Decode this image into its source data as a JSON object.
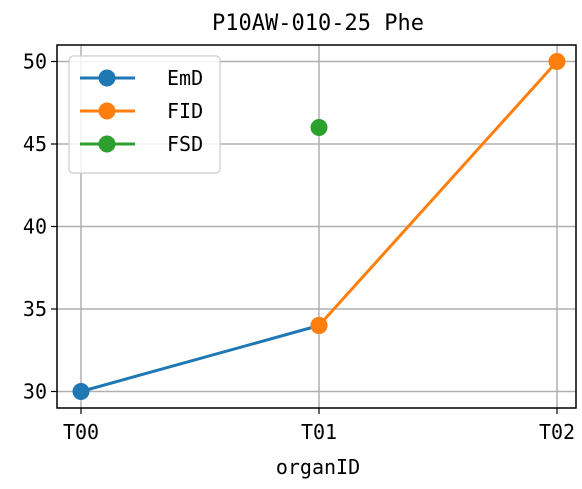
{
  "chart_data": {
    "type": "line",
    "title": "P10AW-010-25 Phe",
    "xlabel": "organID",
    "ylabel": "",
    "categories": [
      "T00",
      "T01",
      "T02"
    ],
    "ylim": [
      29,
      51
    ],
    "yticks": [
      30,
      35,
      40,
      45,
      50
    ],
    "grid": true,
    "legend_position": "top-left",
    "series": [
      {
        "name": "EmD",
        "color": "#1f77b4",
        "values": [
          30,
          34,
          null
        ]
      },
      {
        "name": "FID",
        "color": "#ff7f0e",
        "values": [
          null,
          34,
          50
        ]
      },
      {
        "name": "FSD",
        "color": "#2ca02c",
        "values": [
          null,
          46,
          null
        ]
      }
    ]
  }
}
